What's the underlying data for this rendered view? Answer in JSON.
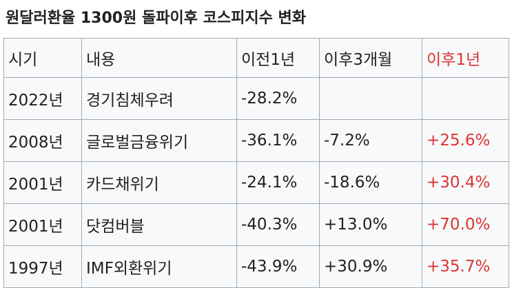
{
  "title": "원달러환율 1300원 돌파이후 코스피지수 변화",
  "table": {
    "header": [
      "시기",
      "내용",
      "이전1년",
      "이후3개월",
      "이후1년"
    ],
    "rows": [
      [
        "2022년",
        "경기침체우려",
        "-28.2%",
        null,
        null
      ],
      [
        "2008년",
        "글로벌금융위기",
        "-36.1%",
        "-7.2%",
        "+25.6%"
      ],
      [
        "2001년",
        "카드채위기",
        "-24.1%",
        "-18.6%",
        "+30.4%"
      ],
      [
        "2001년",
        "닷컴버블",
        "-40.3%",
        "+13.0%",
        "+70.0%"
      ],
      [
        "1997년",
        "IMF외환위기",
        "-43.9%",
        "+30.9%",
        "+35.7%"
      ]
    ],
    "highlight_color": "#d33"
  }
}
